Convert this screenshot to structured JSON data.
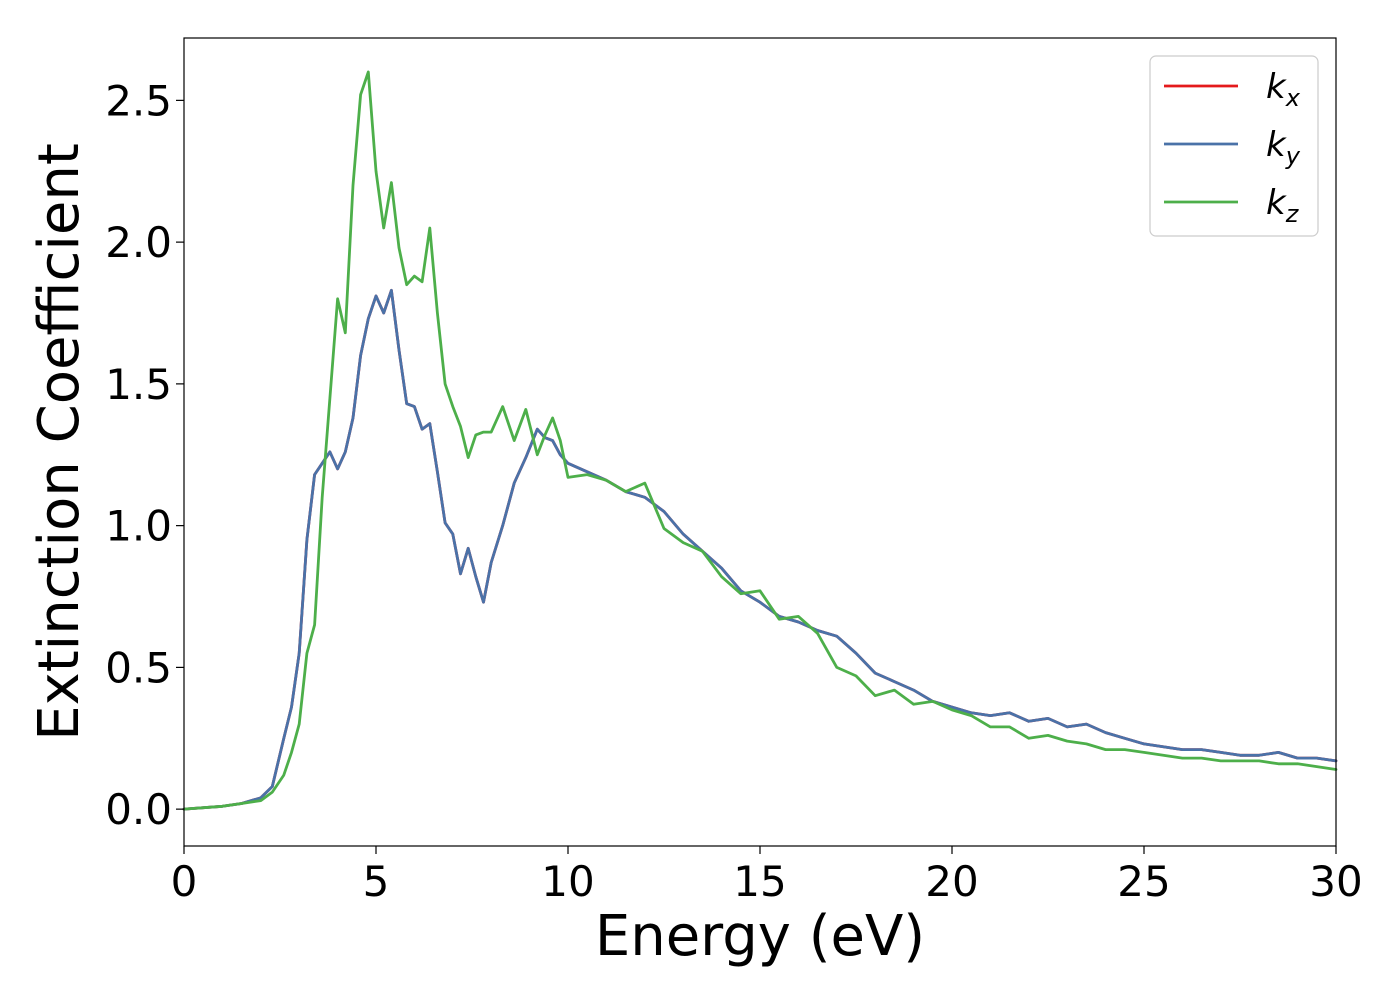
{
  "chart_data": {
    "type": "line",
    "title": "",
    "xlabel": "Energy (eV)",
    "ylabel": "Extinction Coefficient",
    "xlim": [
      0,
      30
    ],
    "ylim": [
      -0.13,
      2.72
    ],
    "xticks": [
      0,
      5,
      10,
      15,
      20,
      25,
      30
    ],
    "xtick_labels": [
      "0",
      "5",
      "10",
      "15",
      "20",
      "25",
      "30"
    ],
    "yticks": [
      0.0,
      0.5,
      1.0,
      1.5,
      2.0,
      2.5
    ],
    "ytick_labels": [
      "0.0",
      "0.5",
      "1.0",
      "1.5",
      "2.0",
      "2.5"
    ],
    "grid": false,
    "legend_position": "top-right",
    "series": [
      {
        "name": "k_x",
        "legend_base": "k",
        "legend_sub": "x",
        "color": "#e41a1c",
        "x": [
          0,
          1,
          1.5,
          2,
          2.3,
          2.6,
          2.8,
          3.0,
          3.2,
          3.4,
          3.6,
          3.8,
          4.0,
          4.2,
          4.4,
          4.6,
          4.8,
          5.0,
          5.2,
          5.4,
          5.6,
          5.8,
          6.0,
          6.2,
          6.4,
          6.6,
          6.8,
          7.0,
          7.2,
          7.4,
          7.6,
          7.8,
          8.0,
          8.3,
          8.6,
          8.9,
          9.2,
          9.4,
          9.6,
          9.8,
          10.0,
          10.5,
          11.0,
          11.5,
          12.0,
          12.5,
          13.0,
          13.5,
          14.0,
          14.5,
          15.0,
          15.5,
          16.0,
          16.5,
          17.0,
          17.5,
          18.0,
          18.5,
          19.0,
          19.5,
          20.0,
          20.5,
          21.0,
          21.5,
          22.0,
          22.5,
          23.0,
          23.5,
          24.0,
          24.5,
          25.0,
          25.5,
          26.0,
          26.5,
          27.0,
          27.5,
          28.0,
          28.5,
          29.0,
          29.5,
          30.0
        ],
        "y": [
          0.0,
          0.01,
          0.02,
          0.04,
          0.08,
          0.25,
          0.36,
          0.55,
          0.95,
          1.18,
          1.22,
          1.26,
          1.2,
          1.26,
          1.38,
          1.6,
          1.73,
          1.81,
          1.75,
          1.83,
          1.62,
          1.43,
          1.42,
          1.34,
          1.36,
          1.19,
          1.01,
          0.97,
          0.83,
          0.92,
          0.82,
          0.73,
          0.87,
          1.0,
          1.15,
          1.24,
          1.34,
          1.31,
          1.3,
          1.25,
          1.22,
          1.19,
          1.16,
          1.12,
          1.1,
          1.05,
          0.97,
          0.91,
          0.85,
          0.77,
          0.73,
          0.68,
          0.66,
          0.63,
          0.61,
          0.55,
          0.48,
          0.45,
          0.42,
          0.38,
          0.36,
          0.34,
          0.33,
          0.34,
          0.31,
          0.32,
          0.29,
          0.3,
          0.27,
          0.25,
          0.23,
          0.22,
          0.21,
          0.21,
          0.2,
          0.19,
          0.19,
          0.2,
          0.18,
          0.18,
          0.17
        ]
      },
      {
        "name": "k_y",
        "legend_base": "k",
        "legend_sub": "y",
        "color": "#4a72a8",
        "x": [
          0,
          1,
          1.5,
          2,
          2.3,
          2.6,
          2.8,
          3.0,
          3.2,
          3.4,
          3.6,
          3.8,
          4.0,
          4.2,
          4.4,
          4.6,
          4.8,
          5.0,
          5.2,
          5.4,
          5.6,
          5.8,
          6.0,
          6.2,
          6.4,
          6.6,
          6.8,
          7.0,
          7.2,
          7.4,
          7.6,
          7.8,
          8.0,
          8.3,
          8.6,
          8.9,
          9.2,
          9.4,
          9.6,
          9.8,
          10.0,
          10.5,
          11.0,
          11.5,
          12.0,
          12.5,
          13.0,
          13.5,
          14.0,
          14.5,
          15.0,
          15.5,
          16.0,
          16.5,
          17.0,
          17.5,
          18.0,
          18.5,
          19.0,
          19.5,
          20.0,
          20.5,
          21.0,
          21.5,
          22.0,
          22.5,
          23.0,
          23.5,
          24.0,
          24.5,
          25.0,
          25.5,
          26.0,
          26.5,
          27.0,
          27.5,
          28.0,
          28.5,
          29.0,
          29.5,
          30.0
        ],
        "y": [
          0.0,
          0.01,
          0.02,
          0.04,
          0.08,
          0.25,
          0.36,
          0.55,
          0.95,
          1.18,
          1.22,
          1.26,
          1.2,
          1.26,
          1.38,
          1.6,
          1.73,
          1.81,
          1.75,
          1.83,
          1.62,
          1.43,
          1.42,
          1.34,
          1.36,
          1.19,
          1.01,
          0.97,
          0.83,
          0.92,
          0.82,
          0.73,
          0.87,
          1.0,
          1.15,
          1.24,
          1.34,
          1.31,
          1.3,
          1.25,
          1.22,
          1.19,
          1.16,
          1.12,
          1.1,
          1.05,
          0.97,
          0.91,
          0.85,
          0.77,
          0.73,
          0.68,
          0.66,
          0.63,
          0.61,
          0.55,
          0.48,
          0.45,
          0.42,
          0.38,
          0.36,
          0.34,
          0.33,
          0.34,
          0.31,
          0.32,
          0.29,
          0.3,
          0.27,
          0.25,
          0.23,
          0.22,
          0.21,
          0.21,
          0.2,
          0.19,
          0.19,
          0.2,
          0.18,
          0.18,
          0.17
        ]
      },
      {
        "name": "k_z",
        "legend_base": "k",
        "legend_sub": "z",
        "color": "#4daf4a",
        "x": [
          0,
          1,
          1.5,
          2,
          2.3,
          2.6,
          2.8,
          3.0,
          3.2,
          3.4,
          3.6,
          3.8,
          4.0,
          4.2,
          4.4,
          4.6,
          4.8,
          5.0,
          5.2,
          5.4,
          5.6,
          5.8,
          6.0,
          6.2,
          6.4,
          6.6,
          6.8,
          7.0,
          7.2,
          7.4,
          7.6,
          7.8,
          8.0,
          8.3,
          8.6,
          8.9,
          9.2,
          9.4,
          9.6,
          9.8,
          10.0,
          10.5,
          11.0,
          11.5,
          12.0,
          12.5,
          13.0,
          13.5,
          14.0,
          14.5,
          15.0,
          15.5,
          16.0,
          16.5,
          17.0,
          17.5,
          18.0,
          18.5,
          19.0,
          19.5,
          20.0,
          20.5,
          21.0,
          21.5,
          22.0,
          22.5,
          23.0,
          23.5,
          24.0,
          24.5,
          25.0,
          25.5,
          26.0,
          26.5,
          27.0,
          27.5,
          28.0,
          28.5,
          29.0,
          29.5,
          30.0
        ],
        "y": [
          0.0,
          0.01,
          0.02,
          0.03,
          0.06,
          0.12,
          0.2,
          0.3,
          0.55,
          0.65,
          1.1,
          1.45,
          1.8,
          1.68,
          2.2,
          2.52,
          2.6,
          2.25,
          2.05,
          2.21,
          1.98,
          1.85,
          1.88,
          1.86,
          2.05,
          1.75,
          1.5,
          1.42,
          1.35,
          1.24,
          1.32,
          1.33,
          1.33,
          1.42,
          1.3,
          1.41,
          1.25,
          1.32,
          1.38,
          1.3,
          1.17,
          1.18,
          1.16,
          1.12,
          1.15,
          0.99,
          0.94,
          0.91,
          0.82,
          0.76,
          0.77,
          0.67,
          0.68,
          0.62,
          0.5,
          0.47,
          0.4,
          0.42,
          0.37,
          0.38,
          0.35,
          0.33,
          0.29,
          0.29,
          0.25,
          0.26,
          0.24,
          0.23,
          0.21,
          0.21,
          0.2,
          0.19,
          0.18,
          0.18,
          0.17,
          0.17,
          0.17,
          0.16,
          0.16,
          0.15,
          0.14
        ]
      }
    ]
  }
}
